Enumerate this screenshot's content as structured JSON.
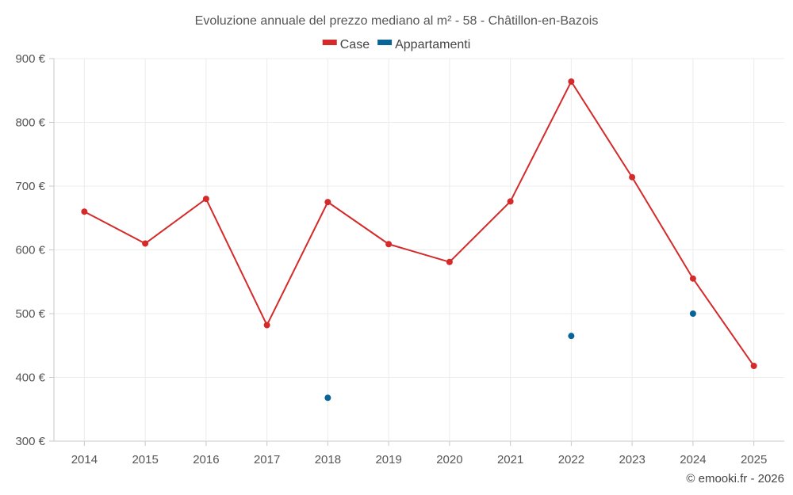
{
  "chart_data": {
    "type": "line",
    "title": "Evoluzione annuale del prezzo mediano al m² - 58 - Châtillon-en-Bazois",
    "categories": [
      "2014",
      "2015",
      "2016",
      "2017",
      "2018",
      "2019",
      "2020",
      "2021",
      "2022",
      "2023",
      "2024",
      "2025"
    ],
    "series": [
      {
        "name": "Case",
        "color": "#d42a2a",
        "line": true,
        "values": [
          660,
          610,
          680,
          482,
          675,
          609,
          581,
          676,
          864,
          714,
          555,
          418
        ]
      },
      {
        "name": "Appartamenti",
        "color": "#0b6497",
        "line": false,
        "values": [
          null,
          null,
          null,
          null,
          368,
          null,
          null,
          null,
          465,
          null,
          500,
          null
        ]
      }
    ],
    "ylim": [
      300,
      900
    ],
    "yticks": [
      300,
      400,
      500,
      600,
      700,
      800,
      900
    ],
    "ytick_labels": [
      "300 €",
      "400 €",
      "500 €",
      "600 €",
      "700 €",
      "800 €",
      "900 €"
    ],
    "xlabel": "",
    "ylabel": "",
    "grid": true,
    "legend_position": "top-center"
  },
  "credit": "© emooki.fr - 2026"
}
